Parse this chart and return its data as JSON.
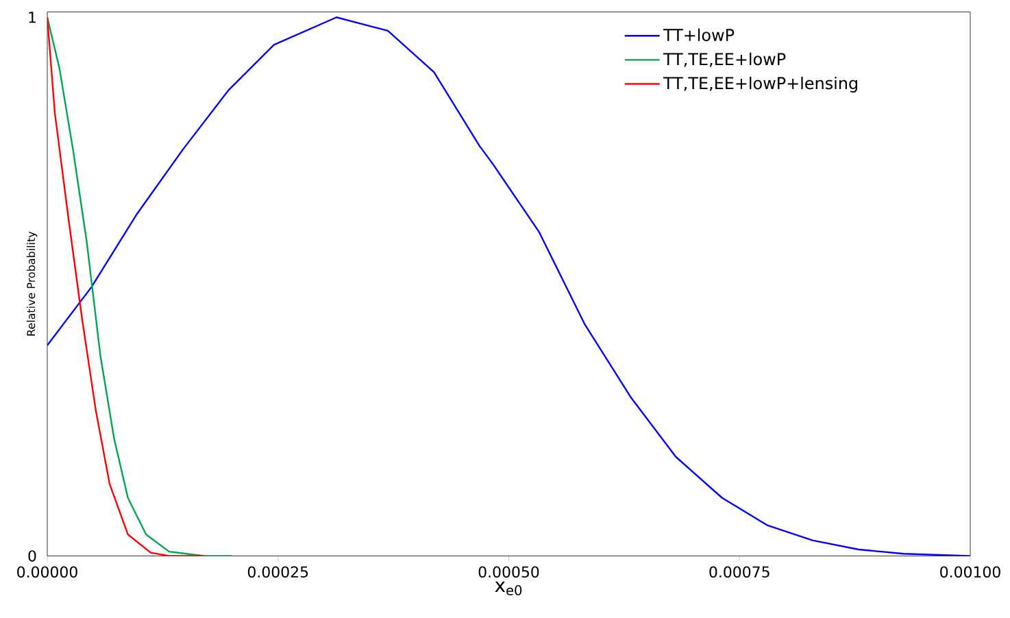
{
  "chart_data": {
    "type": "line",
    "xlabel": "x$_{e0}$",
    "ylabel": "Relative Probability",
    "xlim": [
      0,
      0.001
    ],
    "ylim": [
      0,
      1.01
    ],
    "xticks": [
      {
        "value": 0,
        "label": "0.00000"
      },
      {
        "value": 0.00025,
        "label": "0.00025"
      },
      {
        "value": 0.0005,
        "label": "0.00050"
      },
      {
        "value": 0.00075,
        "label": "0.00075"
      },
      {
        "value": 0.001,
        "label": "0.00100"
      }
    ],
    "yticks": [
      0,
      1
    ],
    "legend": "top right",
    "grid": false,
    "marker": "none",
    "line_style": "solid",
    "series": [
      {
        "name": "TT+lowP",
        "color": "#0000ff",
        "x": [
          0,
          4.78e-05,
          9.72e-05,
          0.0001467,
          0.000196,
          0.0002456,
          0.0003134,
          0.000369,
          0.000419,
          0.000468,
          0.000483,
          0.000533,
          0.000582,
          0.000632,
          0.000681,
          0.000731,
          0.00078,
          0.000829,
          0.000879,
          0.000928,
          0.001
        ],
        "values": [
          0.391,
          0.499,
          0.635,
          0.754,
          0.864,
          0.949,
          1.0,
          0.975,
          0.898,
          0.762,
          0.727,
          0.601,
          0.431,
          0.295,
          0.184,
          0.108,
          0.057,
          0.029,
          0.012,
          0.004,
          0
        ]
      },
      {
        "name": "TT,TE,EE+lowP",
        "color": "#00a550",
        "x": [
          0,
          1.31e-05,
          2.79e-05,
          4.27e-05,
          5.76e-05,
          7.24e-05,
          8.73e-05,
          0.000107,
          0.000132,
          0.00017,
          0.0002
        ],
        "values": [
          1.0,
          0.906,
          0.754,
          0.584,
          0.371,
          0.218,
          0.108,
          0.04,
          0.008,
          0,
          0
        ]
      },
      {
        "name": "TT,TE,EE+lowP+lensing",
        "color": "#ff0000",
        "x": [
          0,
          8.2e-06,
          2.3e-05,
          3.78e-05,
          5.27e-05,
          6.75e-05,
          8.73e-05,
          0.000112,
          0.000132,
          0.00017
        ],
        "values": [
          1.0,
          0.822,
          0.626,
          0.439,
          0.269,
          0.134,
          0.04,
          0.006,
          0,
          0
        ]
      }
    ]
  }
}
